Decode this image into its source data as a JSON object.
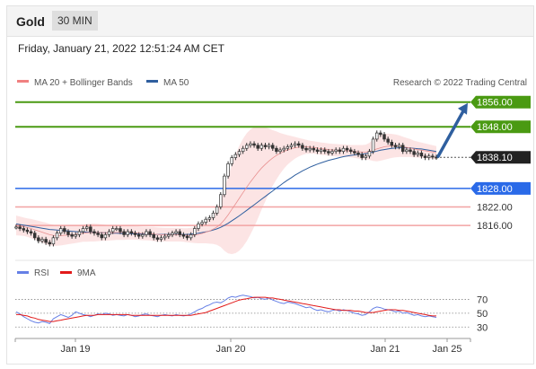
{
  "header": {
    "title": "Gold",
    "timeframe": "30 MIN"
  },
  "datetime": "Friday, January 21, 2022 12:51:24 AM CET",
  "credit": "Research © 2022 Trading Central",
  "colors": {
    "resistance": "#4a9a12",
    "support": "#e04040",
    "pivot": "#2a6ae8",
    "price": "#222222",
    "ma20": "#f08080",
    "ma50": "#2f5f9f",
    "rsi": "#6680e6",
    "rsi_ma": "#e21a1a",
    "arrow": "#2f5f9f"
  },
  "chart_data": [
    {
      "type": "candlestick",
      "legend": [
        {
          "name": "MA 20 + Bollinger Bands",
          "color": "#f08080"
        },
        {
          "name": "MA 50",
          "color": "#2f5f9f"
        }
      ],
      "x_ticks": [
        "Jan 19",
        "Jan 20",
        "Jan 21",
        "Jan 25"
      ],
      "ylim": [
        1807,
        1860
      ],
      "levels": [
        {
          "label": "1856.00",
          "value": 1856.0,
          "kind": "resistance"
        },
        {
          "label": "1848.00",
          "value": 1848.0,
          "kind": "resistance"
        },
        {
          "label": "1838.10",
          "value": 1838.1,
          "kind": "last"
        },
        {
          "label": "1828.00",
          "value": 1828.0,
          "kind": "pivot"
        },
        {
          "label": "1822.00",
          "value": 1822.0,
          "kind": "support"
        },
        {
          "label": "1816.00",
          "value": 1816.0,
          "kind": "support"
        }
      ],
      "price_close": [
        1815.5,
        1815,
        1814.5,
        1814,
        1813.5,
        1812,
        1811,
        1811.5,
        1810.5,
        1810,
        1812,
        1813.5,
        1815,
        1814,
        1813,
        1812.5,
        1813,
        1814,
        1815,
        1815.5,
        1814,
        1813.5,
        1813,
        1812,
        1813,
        1814,
        1815,
        1815,
        1814,
        1813,
        1814,
        1813.5,
        1813,
        1812.5,
        1813,
        1814,
        1813,
        1812,
        1811.5,
        1812,
        1812.5,
        1813,
        1813.5,
        1814,
        1813,
        1812.5,
        1812,
        1813,
        1815,
        1816.5,
        1817,
        1818,
        1818.5,
        1820,
        1822,
        1826,
        1832,
        1836,
        1838,
        1839,
        1840,
        1841,
        1842,
        1842.5,
        1842,
        1841,
        1842,
        1841.5,
        1842,
        1841,
        1840,
        1840.5,
        1841,
        1841.5,
        1842,
        1842.5,
        1842,
        1841,
        1840.5,
        1841,
        1840.5,
        1840,
        1840.5,
        1840,
        1839.5,
        1840,
        1840.5,
        1840,
        1841,
        1840.5,
        1840,
        1839.5,
        1839,
        1838,
        1838.5,
        1840,
        1844,
        1846,
        1845.5,
        1844,
        1843,
        1842,
        1841.5,
        1842,
        1840,
        1840.5,
        1840,
        1839,
        1839.5,
        1838.5,
        1838,
        1838.5,
        1838.2,
        1838.1
      ],
      "ma50": [
        1816.5,
        1816.3,
        1816.1,
        1815.9,
        1815.7,
        1815.5,
        1815.3,
        1815.1,
        1814.9,
        1814.7,
        1814.6,
        1814.5,
        1814.4,
        1814.3,
        1814.2,
        1814.1,
        1814.0,
        1813.9,
        1813.9,
        1813.8,
        1813.8,
        1813.7,
        1813.7,
        1813.6,
        1813.6,
        1813.5,
        1813.5,
        1813.5,
        1813.4,
        1813.4,
        1813.4,
        1813.3,
        1813.3,
        1813.3,
        1813.2,
        1813.2,
        1813.2,
        1813.1,
        1813.1,
        1813.1,
        1813.1,
        1813.1,
        1813.1,
        1813.1,
        1813.1,
        1813.1,
        1813.1,
        1813.2,
        1813.3,
        1813.5,
        1813.7,
        1813.9,
        1814.2,
        1814.5,
        1814.9,
        1815.4,
        1816.0,
        1816.7,
        1817.5,
        1818.3,
        1819.1,
        1820.0,
        1820.9,
        1821.8,
        1822.7,
        1823.6,
        1824.5,
        1825.4,
        1826.3,
        1827.2,
        1828.1,
        1829.0,
        1829.9,
        1830.7,
        1831.5,
        1832.3,
        1833.0,
        1833.7,
        1834.3,
        1834.9,
        1835.4,
        1835.9,
        1836.3,
        1836.7,
        1837.1,
        1837.4,
        1837.7,
        1838.0,
        1838.3,
        1838.5,
        1838.7,
        1838.9,
        1839.0,
        1839.1,
        1839.3,
        1839.5,
        1839.8,
        1840.1,
        1840.4,
        1840.6,
        1840.8,
        1841.0,
        1841.1,
        1841.2,
        1841.2,
        1841.2,
        1841.1,
        1841.0,
        1840.9,
        1840.8,
        1840.6,
        1840.4,
        1840.2,
        1840.0
      ],
      "ma20": [
        1816,
        1815.8,
        1815.6,
        1815.3,
        1815,
        1814.6,
        1814.2,
        1813.8,
        1813.4,
        1813.0,
        1812.8,
        1812.7,
        1812.7,
        1812.8,
        1812.9,
        1813.0,
        1813.1,
        1813.3,
        1813.5,
        1813.6,
        1813.7,
        1813.7,
        1813.7,
        1813.7,
        1813.6,
        1813.6,
        1813.6,
        1813.7,
        1813.7,
        1813.7,
        1813.7,
        1813.7,
        1813.6,
        1813.5,
        1813.4,
        1813.4,
        1813.3,
        1813.2,
        1813.1,
        1813.0,
        1813.0,
        1813.0,
        1813.0,
        1813.0,
        1813.0,
        1812.9,
        1812.8,
        1812.8,
        1812.9,
        1813.1,
        1813.4,
        1813.8,
        1814.2,
        1814.8,
        1815.5,
        1816.5,
        1817.8,
        1819.4,
        1821.2,
        1823.0,
        1824.8,
        1826.6,
        1828.4,
        1830.1,
        1831.7,
        1833.2,
        1834.6,
        1835.8,
        1836.9,
        1837.9,
        1838.7,
        1839.4,
        1840.0,
        1840.5,
        1840.9,
        1841.2,
        1841.4,
        1841.5,
        1841.5,
        1841.4,
        1841.3,
        1841.1,
        1840.9,
        1840.8,
        1840.6,
        1840.5,
        1840.4,
        1840.3,
        1840.3,
        1840.2,
        1840.1,
        1840.0,
        1839.9,
        1839.8,
        1839.8,
        1840.0,
        1840.4,
        1840.8,
        1841.2,
        1841.5,
        1841.7,
        1841.8,
        1841.8,
        1841.7,
        1841.5,
        1841.3,
        1841.1,
        1840.8,
        1840.6,
        1840.4,
        1840.2,
        1840.0,
        1839.8,
        1839.6
      ],
      "band_width": [
        3.2,
        3.1,
        3.0,
        3.0,
        3.1,
        3.2,
        3.3,
        3.4,
        3.5,
        3.5,
        3.4,
        3.3,
        3.2,
        3.1,
        3.0,
        2.9,
        2.8,
        2.8,
        2.8,
        2.9,
        2.9,
        2.9,
        2.8,
        2.7,
        2.6,
        2.5,
        2.4,
        2.4,
        2.4,
        2.4,
        2.3,
        2.3,
        2.2,
        2.2,
        2.2,
        2.2,
        2.2,
        2.3,
        2.3,
        2.3,
        2.2,
        2.2,
        2.2,
        2.2,
        2.2,
        2.2,
        2.3,
        2.4,
        2.6,
        2.9,
        3.2,
        3.6,
        4.1,
        4.8,
        5.8,
        7.5,
        10,
        12.5,
        14.5,
        16,
        17,
        17.5,
        17.5,
        17,
        16.2,
        15,
        13.5,
        12,
        10.5,
        9,
        7.8,
        6.6,
        5.6,
        4.8,
        4.1,
        3.5,
        3.0,
        2.6,
        2.3,
        2.1,
        2.0,
        2.0,
        2.0,
        2.0,
        2.0,
        2.0,
        2.0,
        2.0,
        2.0,
        2.0,
        2.0,
        2.1,
        2.2,
        2.3,
        2.4,
        2.8,
        3.5,
        4.0,
        4.2,
        4.2,
        4.1,
        3.9,
        3.7,
        3.5,
        3.3,
        3.1,
        2.9,
        2.7,
        2.6,
        2.5,
        2.4,
        2.3,
        2.2,
        2.1
      ]
    },
    {
      "type": "line",
      "legend": [
        {
          "name": "RSI",
          "color": "#6680e6"
        },
        {
          "name": "9MA",
          "color": "#e21a1a"
        }
      ],
      "ylim": [
        20,
        90
      ],
      "y_ticks": [
        {
          "label": "70",
          "value": 70
        },
        {
          "label": "50",
          "value": 50
        },
        {
          "label": "30",
          "value": 30
        }
      ],
      "rsi": [
        52,
        49,
        45,
        42,
        39,
        37,
        36,
        38,
        37,
        35,
        42,
        45,
        48,
        46,
        44,
        47,
        52,
        50,
        48,
        47,
        45,
        47,
        49,
        48,
        50,
        49,
        47,
        48,
        47,
        46,
        48,
        47,
        45,
        46,
        48,
        49,
        47,
        46,
        45,
        47,
        48,
        47,
        46,
        48,
        47,
        46,
        47,
        49,
        52,
        55,
        57,
        60,
        62,
        65,
        66,
        65,
        68,
        72,
        74,
        73,
        75,
        76,
        75,
        74,
        72,
        73,
        71,
        70,
        72,
        69,
        67,
        65,
        64,
        66,
        65,
        64,
        62,
        60,
        58,
        59,
        56,
        54,
        55,
        53,
        52,
        54,
        55,
        53,
        55,
        54,
        52,
        50,
        49,
        47,
        48,
        52,
        57,
        59,
        58,
        56,
        55,
        54,
        52,
        53,
        50,
        51,
        49,
        47,
        48,
        46,
        45,
        46,
        45,
        44
      ],
      "rsi_ma": [
        48,
        48,
        47,
        46,
        44,
        43,
        41,
        40,
        39,
        38,
        38,
        39,
        40,
        41,
        42,
        43,
        44,
        45,
        46,
        47,
        47,
        47,
        48,
        48,
        48,
        48,
        48,
        48,
        48,
        48,
        48,
        47,
        47,
        47,
        47,
        47,
        47,
        47,
        47,
        47,
        47,
        47,
        47,
        47,
        47,
        47,
        47,
        47,
        48,
        49,
        50,
        51,
        53,
        55,
        57,
        59,
        61,
        63,
        65,
        67,
        69,
        70,
        71,
        72,
        73,
        73,
        73,
        73,
        72,
        72,
        71,
        70,
        69,
        68,
        67,
        66,
        65,
        64,
        63,
        62,
        61,
        60,
        59,
        58,
        57,
        56,
        55,
        55,
        54,
        54,
        54,
        53,
        53,
        52,
        51,
        51,
        51,
        52,
        53,
        54,
        55,
        55,
        55,
        54,
        54,
        53,
        52,
        51,
        50,
        49,
        48,
        47,
        46,
        46
      ]
    }
  ]
}
